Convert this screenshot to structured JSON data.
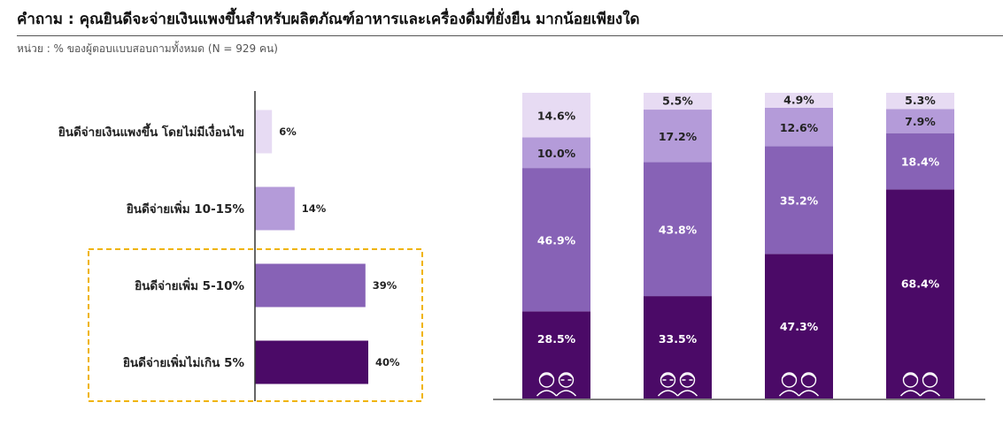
{
  "header": {
    "title": "คำถาม : คุณยินดีจะจ่ายเงินแพงขึ้นสำหรับผลิตภัณฑ์อาหารและเครื่องดื่มที่ยั่งยืน มากน้อยเพียงใด",
    "subtitle": "หน่วย : % ของผู้ตอบแบบสอบถามทั้งหมด (N = 929 คน)"
  },
  "colors": {
    "level1": "#e7dbf3",
    "level2": "#b49bd9",
    "level3": "#8762b6",
    "level4": "#4b0a67",
    "highlight_box": "#f0b400"
  },
  "chart_data": [
    {
      "type": "bar",
      "orientation": "horizontal",
      "categories": [
        "ยินดีจ่ายเงินแพงขึ้น โดยไม่มีเงื่อนไข",
        "ยินดีจ่ายเพิ่ม 10-15%",
        "ยินดีจ่ายเพิ่ม 5-10%",
        "ยินดีจ่ายเพิ่มไม่เกิน 5%"
      ],
      "values": [
        6,
        14,
        39,
        40
      ],
      "value_labels": [
        "6%",
        "14%",
        "39%",
        "40%"
      ],
      "highlighted_categories": [
        "ยินดีจ่ายเพิ่ม 5-10%",
        "ยินดีจ่ายเพิ่มไม่เกิน 5%"
      ]
    },
    {
      "type": "bar",
      "stacked": true,
      "categories": [
        "group-1",
        "group-2",
        "group-3",
        "group-4"
      ],
      "category_icons": [
        "elderly-couple-icon",
        "glasses-couple-icon",
        "young-couple-icon",
        "teen-couple-icon"
      ],
      "series": [
        {
          "values": [
            28.5,
            33.5,
            47.3,
            68.4
          ],
          "labels": [
            "28.5%",
            "33.5%",
            "47.3%",
            "68.4%"
          ]
        },
        {
          "values": [
            46.9,
            43.8,
            35.2,
            18.4
          ],
          "labels": [
            "46.9%",
            "43.8%",
            "35.2%",
            "18.4%"
          ]
        },
        {
          "values": [
            10.0,
            17.2,
            12.6,
            7.9
          ],
          "labels": [
            "10.0%",
            "17.2%",
            "12.6%",
            "7.9%"
          ]
        },
        {
          "values": [
            14.6,
            5.5,
            4.9,
            5.3
          ],
          "labels": [
            "14.6%",
            "5.5%",
            "4.9%",
            "5.3%"
          ]
        }
      ],
      "ylim": [
        0,
        100
      ]
    }
  ]
}
